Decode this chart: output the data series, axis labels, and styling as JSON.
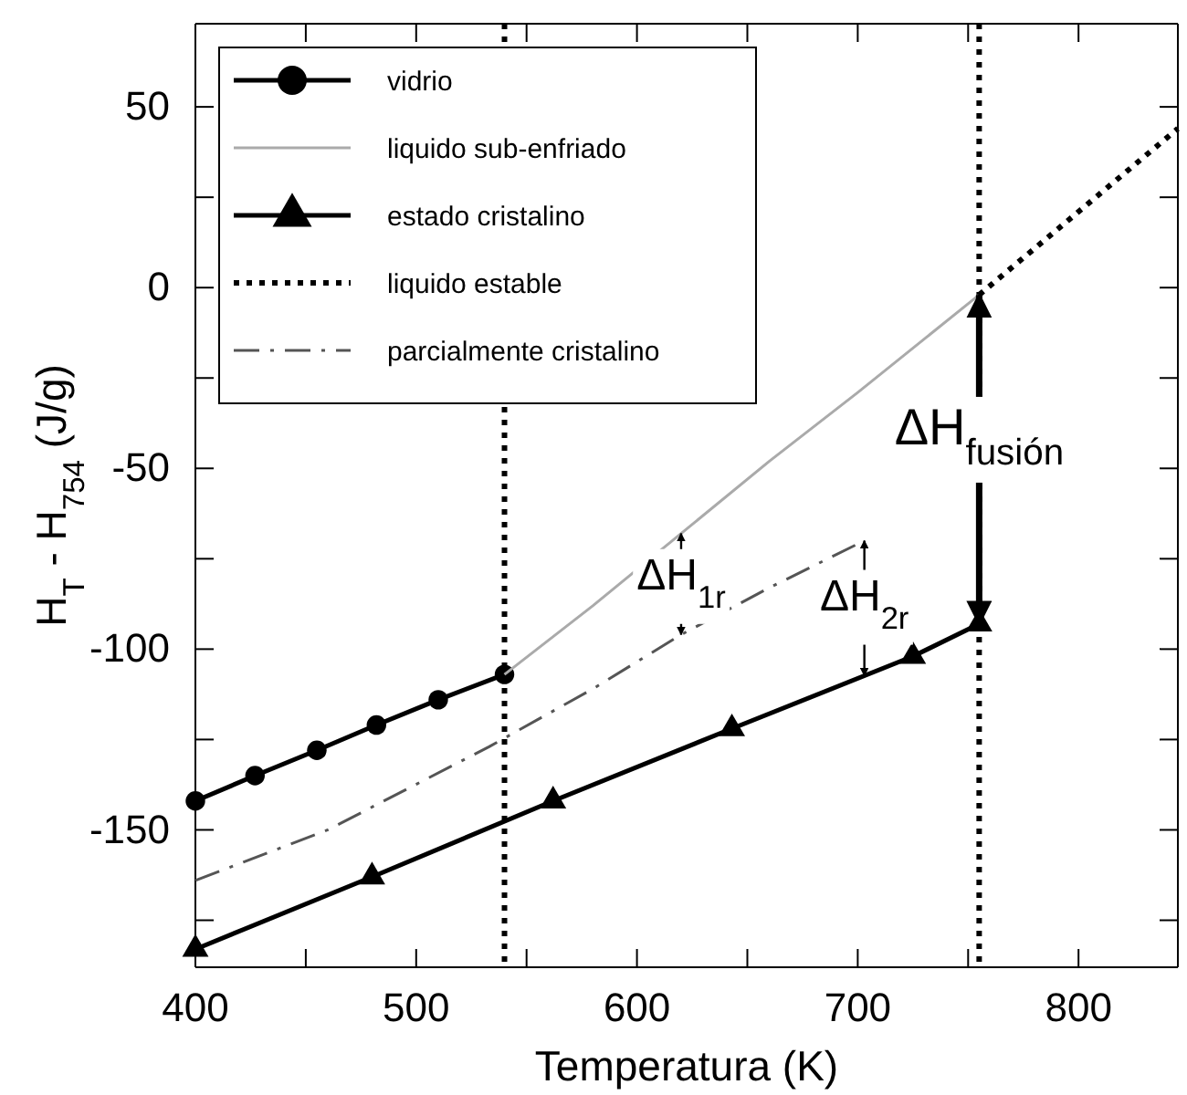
{
  "chart_data": {
    "type": "line",
    "xlabel": "Temperatura (K)",
    "ylabel": "H$_{T}$ - H$_{754}$ (J/g)",
    "xlim": [
      400,
      845
    ],
    "ylim": [
      -188,
      73
    ],
    "xticks": [
      400,
      {
        "value": 450,
        "label": null
      },
      500,
      {
        "value": 550,
        "label": null
      },
      600,
      {
        "value": 650,
        "label": null
      },
      700,
      {
        "value": 750,
        "label": null
      },
      800
    ],
    "yticks": [
      {
        "value": -175,
        "label": null
      },
      -150,
      {
        "value": -125,
        "label": null
      },
      -100,
      {
        "value": -75,
        "label": null
      },
      -50,
      {
        "value": -25,
        "label": null
      },
      0,
      {
        "value": 25,
        "label": null
      },
      50
    ],
    "grid": false,
    "legend": "top left",
    "series": [
      {
        "name": "vidrio",
        "color": "#000000",
        "marker": "circle",
        "line_style": "solid",
        "x": [
          400,
          427,
          455,
          482,
          510,
          540
        ],
        "values": [
          -142,
          -135,
          -128,
          -121,
          -114,
          -107
        ]
      },
      {
        "name": "liquido sub-enfriado",
        "color": "#aaaaaa",
        "marker": "none",
        "line_style": "solid",
        "x": [
          540,
          580,
          620,
          660,
          700,
          755
        ],
        "values": [
          -107,
          -88,
          -68,
          -48,
          -29,
          -2
        ]
      },
      {
        "name": "estado cristalino",
        "color": "#000000",
        "marker": "triangle",
        "line_style": "solid",
        "x": [
          400,
          480,
          562,
          643,
          725,
          755
        ],
        "values": [
          -183,
          -163,
          -142,
          -122,
          -102,
          -93
        ]
      },
      {
        "name": "liquido estable",
        "color": "#000000",
        "marker": "none",
        "line_style": "dotted",
        "x": [
          755,
          800,
          845
        ],
        "values": [
          -2,
          21,
          44
        ]
      },
      {
        "name": "parcialmente cristalino",
        "color": "#555555",
        "marker": "none",
        "line_style": "dashed",
        "x": [
          400,
          460,
          533,
          580,
          620,
          660,
          703
        ],
        "values": [
          -164,
          -150,
          -127,
          -111,
          -96,
          -83,
          -70
        ]
      }
    ],
    "ref_lines": [
      {
        "axis": "x",
        "value": 540,
        "line_style": "dotted",
        "color": "#000000"
      },
      {
        "axis": "x",
        "value": 755,
        "line_style": "dotted",
        "color": "#000000"
      }
    ],
    "annotations": [
      {
        "text": "ΔH$_{fusión}$",
        "x": 755,
        "y": -2
      },
      {
        "text": "ΔH$_{1r}$",
        "x": 620,
        "y": -68
      },
      {
        "text": "ΔH$_{2r}$",
        "x": 703,
        "y": -70
      }
    ]
  }
}
